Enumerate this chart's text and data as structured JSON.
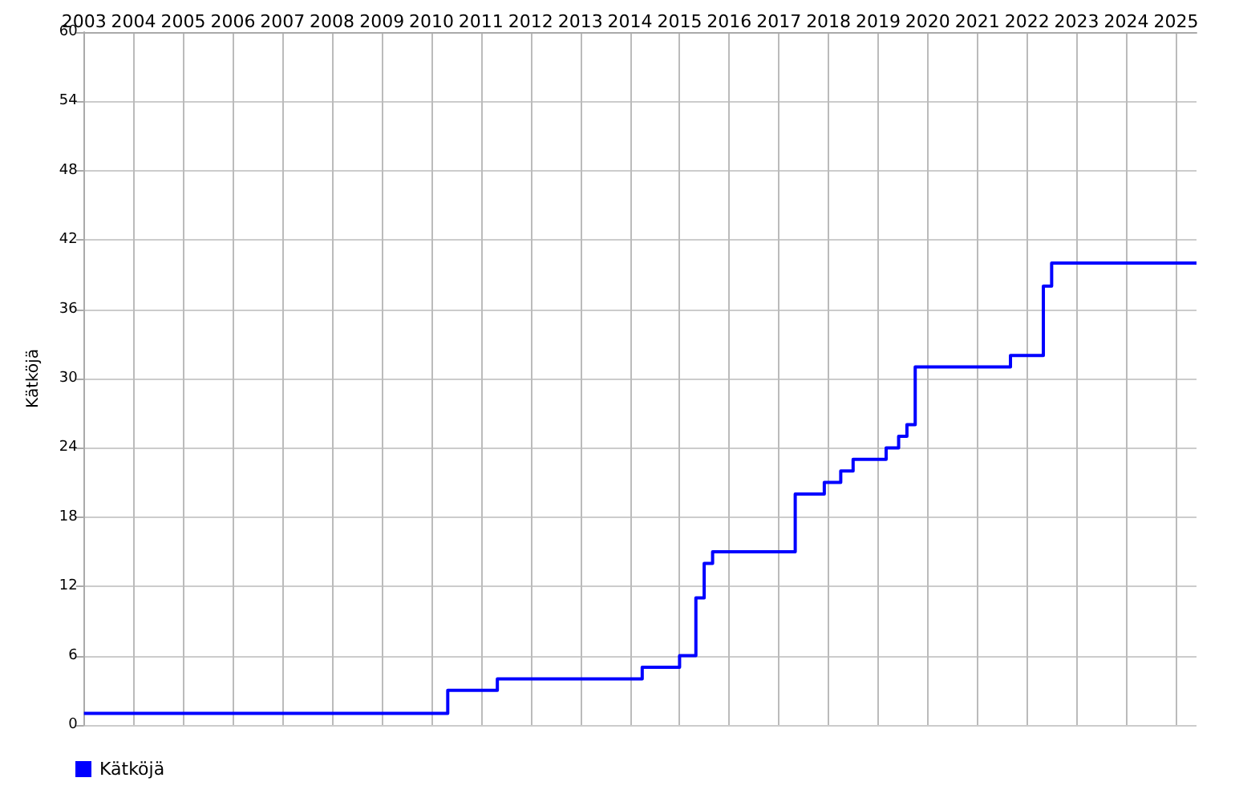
{
  "chart_data": {
    "type": "step",
    "ylabel": "Kätköjä",
    "x": [
      "2003-01",
      "2010-05",
      "2011-05",
      "2014-04",
      "2015-01",
      "2015-05",
      "2015-07",
      "2015-09",
      "2017-05",
      "2017-12",
      "2018-04",
      "2018-07",
      "2019-03",
      "2019-06",
      "2019-08",
      "2019-10",
      "2021-09",
      "2022-05",
      "2022-07",
      "2025-06"
    ],
    "series": [
      {
        "name": "Kätköjä",
        "color": "#0000ff",
        "values": [
          1,
          3,
          4,
          5,
          6,
          11,
          14,
          15,
          20,
          21,
          22,
          23,
          24,
          25,
          26,
          31,
          32,
          38,
          40,
          40
        ]
      }
    ],
    "xlim": [
      "2003",
      "2025-06"
    ],
    "xticks": [
      "2003",
      "2004",
      "2005",
      "2006",
      "2007",
      "2008",
      "2009",
      "2010",
      "2011",
      "2012",
      "2013",
      "2014",
      "2015",
      "2016",
      "2017",
      "2018",
      "2019",
      "2020",
      "2021",
      "2022",
      "2023",
      "2024",
      "2025"
    ],
    "ylim": [
      0,
      60
    ],
    "yticks": [
      0,
      6,
      12,
      18,
      24,
      30,
      36,
      42,
      48,
      54,
      60
    ],
    "grid": true,
    "legend": "bottom left",
    "marker": "none",
    "line_style": "solid"
  }
}
